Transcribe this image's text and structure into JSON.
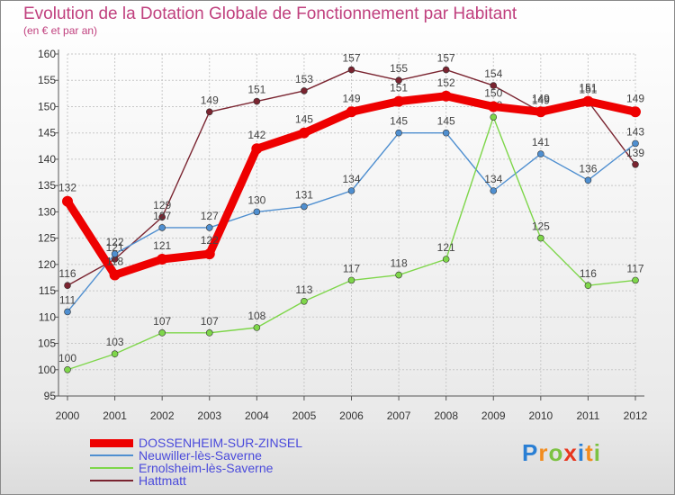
{
  "chart_data": {
    "type": "line",
    "title": "Evolution de la Dotation Globale de Fonctionnement par Habitant",
    "subtitle": "(en € et par an)",
    "xlabel": "",
    "ylabel": "",
    "categories": [
      "2000",
      "2001",
      "2002",
      "2003",
      "2004",
      "2005",
      "2006",
      "2007",
      "2008",
      "2009",
      "2010",
      "2011",
      "2012"
    ],
    "ylim": [
      95,
      160
    ],
    "yticks": [
      95,
      100,
      105,
      110,
      115,
      120,
      125,
      130,
      135,
      140,
      145,
      150,
      155,
      160
    ],
    "grid": true,
    "legend_position": "bottom-left",
    "series": [
      {
        "name": "Hattmatt",
        "color": "#7a2430",
        "values": [
          116,
          121,
          129,
          149,
          151,
          153,
          157,
          155,
          157,
          154,
          149,
          151,
          139
        ]
      },
      {
        "name": "Neuwiller-lès-Saverne",
        "color": "#4f8fd0",
        "values": [
          111,
          122,
          127,
          127,
          130,
          131,
          134,
          145,
          145,
          134,
          141,
          136,
          143
        ]
      },
      {
        "name": "Ernolsheim-lès-Saverne",
        "color": "#7ed64a",
        "values": [
          100,
          103,
          107,
          107,
          108,
          113,
          117,
          118,
          121,
          148,
          125,
          116,
          117
        ]
      },
      {
        "name": "DOSSENHEIM-SUR-ZINSEL",
        "color": "#ee0000",
        "values": [
          132,
          118,
          121,
          122,
          142,
          145,
          149,
          151,
          152,
          150,
          149,
          151,
          149
        ]
      }
    ],
    "legend": [
      "DOSSENHEIM-SUR-ZINSEL",
      "Neuwiller-lès-Saverne",
      "Ernolsheim-lès-Saverne",
      "Hattmatt"
    ]
  },
  "brand": {
    "letters": [
      "P",
      "r",
      "o",
      "x",
      "i",
      "t",
      "i"
    ],
    "colors": [
      "#2a7fd4",
      "#f28c1e",
      "#7cc242",
      "#e8361e",
      "#2a7fd4",
      "#f28c1e",
      "#7cc242"
    ]
  }
}
